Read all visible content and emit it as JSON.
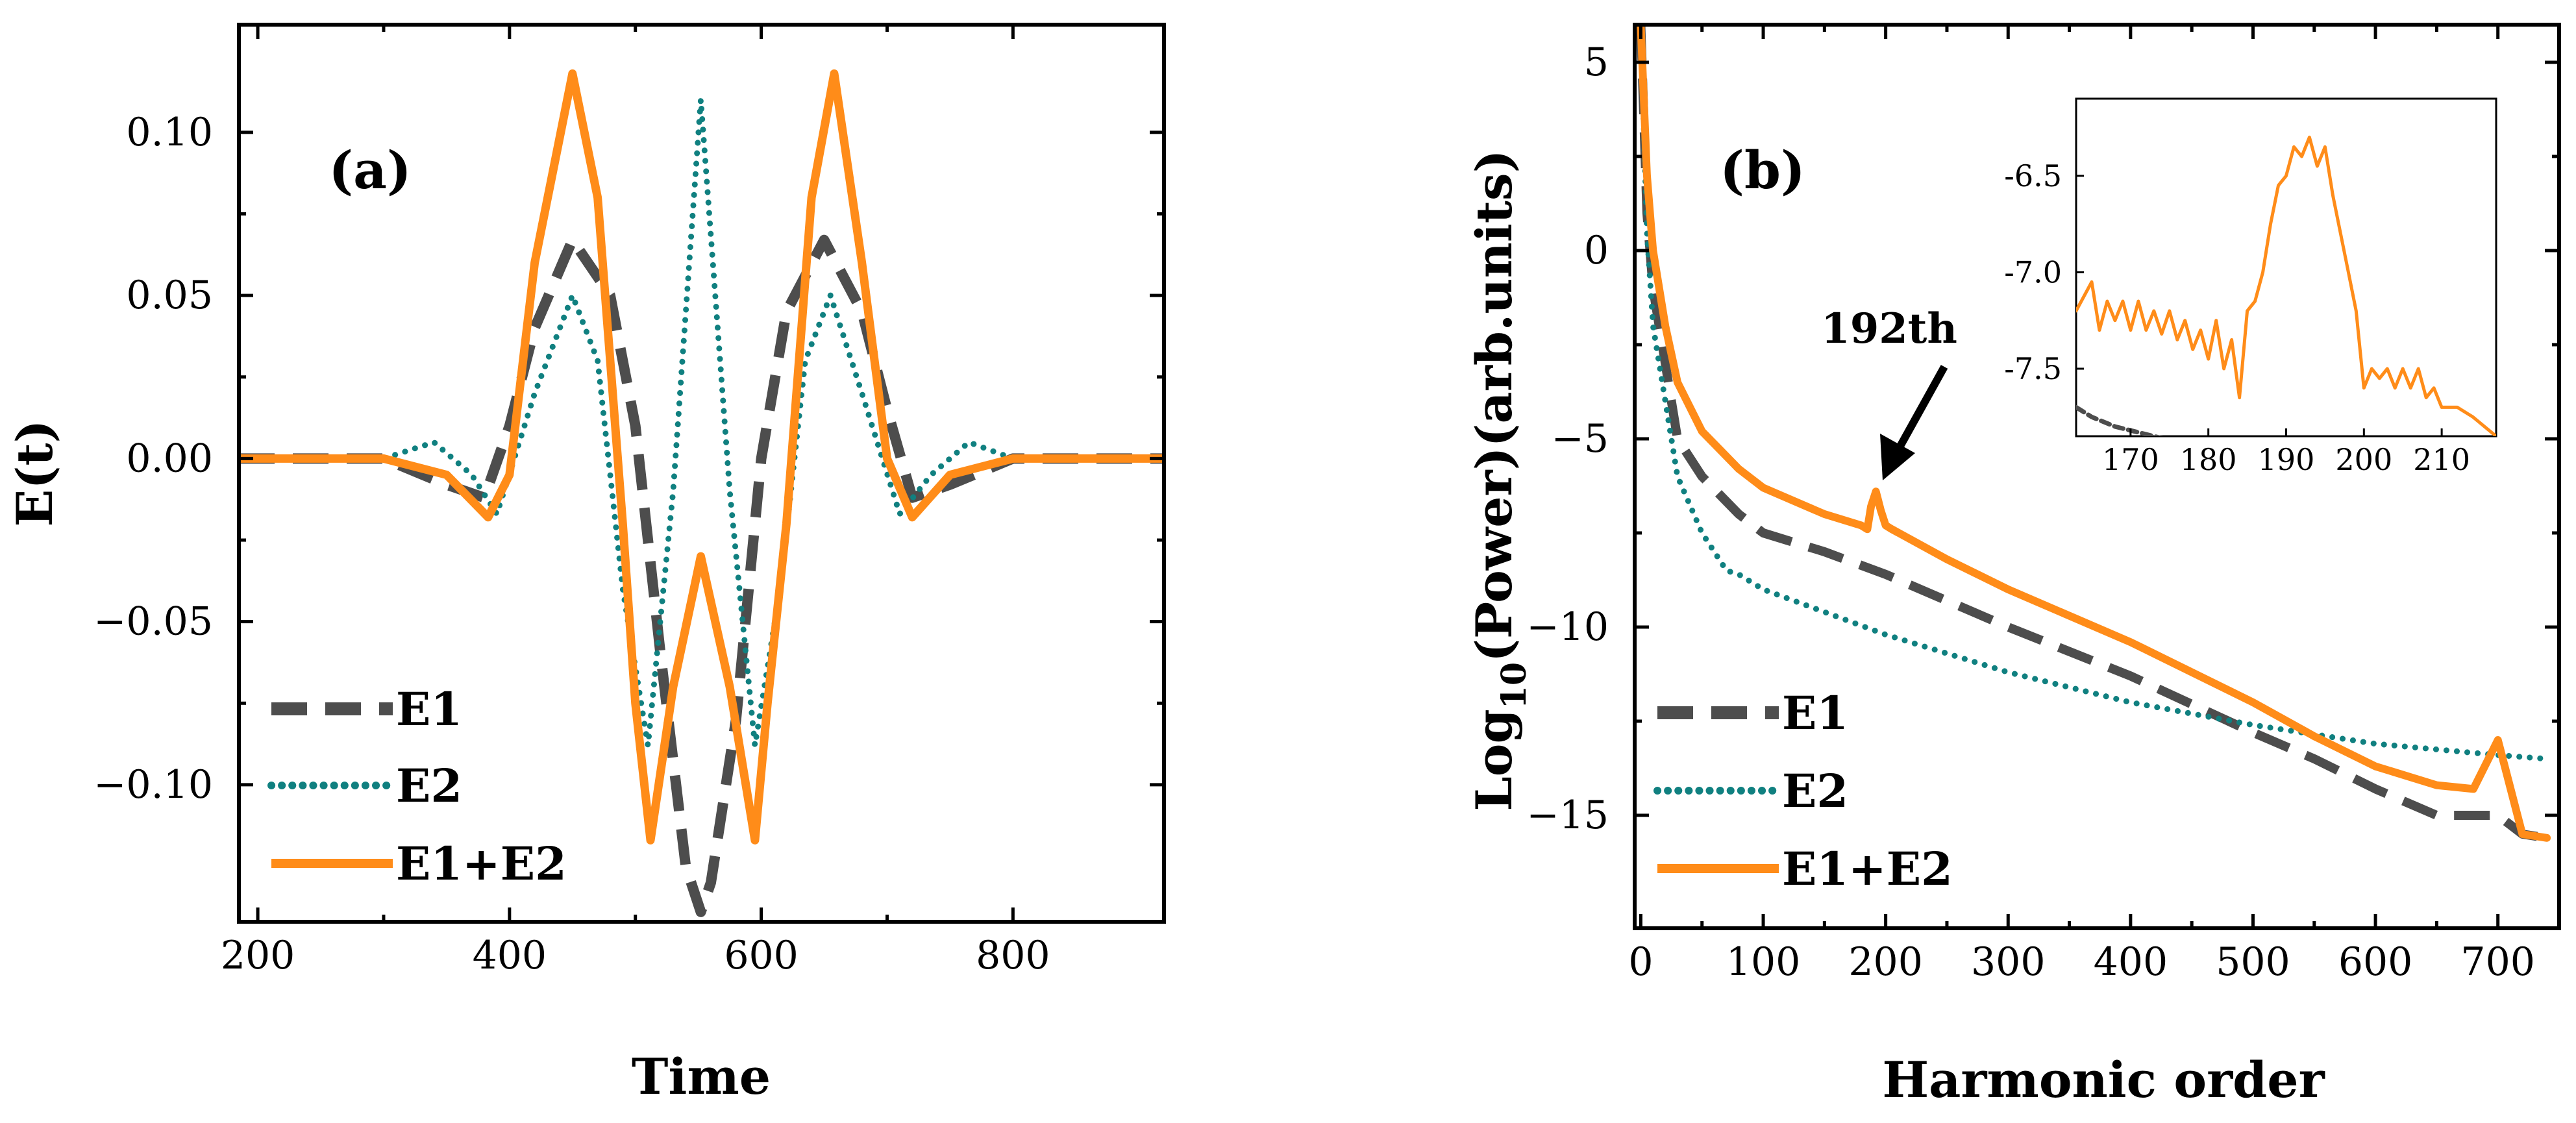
{
  "colors": {
    "E1": "#4d4d4d",
    "E2": "#108080",
    "E1E2": "#ff8c19"
  },
  "chart_data": [
    {
      "type": "line",
      "panel_label": "(a)",
      "xlabel": "Time",
      "ylabel": "E(t)",
      "xlim": [
        185,
        920
      ],
      "ylim": [
        -0.142,
        0.133
      ],
      "xticks": [
        200,
        400,
        600,
        800
      ],
      "yticks": [
        -0.1,
        -0.05,
        0.0,
        0.05,
        0.1
      ],
      "ytick_labels": [
        "−0.10",
        "−0.05",
        "0.00",
        "0.05",
        "0.10"
      ],
      "legend": {
        "placement": "bottom-left",
        "entries": [
          "E1",
          "E2",
          "E1+E2"
        ]
      },
      "series": [
        {
          "name": "E1",
          "style": "dashed",
          "x": [
            185,
            250,
            300,
            350,
            380,
            400,
            420,
            450,
            480,
            500,
            520,
            540,
            552,
            560,
            580,
            600,
            620,
            650,
            680,
            700,
            720,
            750,
            800,
            850,
            920
          ],
          "y": [
            0,
            0,
            0,
            -0.008,
            -0.012,
            0.01,
            0.04,
            0.067,
            0.05,
            0.01,
            -0.06,
            -0.125,
            -0.139,
            -0.13,
            -0.08,
            0.0,
            0.045,
            0.067,
            0.045,
            0.015,
            -0.012,
            -0.008,
            0,
            0,
            0
          ]
        },
        {
          "name": "E2",
          "style": "dotted",
          "x": [
            185,
            300,
            340,
            370,
            390,
            420,
            450,
            470,
            490,
            510,
            530,
            552,
            575,
            595,
            615,
            635,
            655,
            680,
            710,
            735,
            765,
            800,
            920
          ],
          "y": [
            0,
            0,
            0.005,
            -0.005,
            -0.017,
            0.02,
            0.05,
            0.03,
            -0.04,
            -0.088,
            -0.01,
            0.11,
            -0.01,
            -0.088,
            -0.04,
            0.03,
            0.05,
            0.02,
            -0.017,
            -0.005,
            0.005,
            0,
            0
          ]
        },
        {
          "name": "E1+E2",
          "style": "solid",
          "x": [
            185,
            300,
            350,
            383,
            400,
            420,
            450,
            470,
            490,
            500,
            512,
            530,
            552,
            575,
            595,
            605,
            620,
            640,
            658,
            680,
            700,
            720,
            750,
            800,
            920
          ],
          "y": [
            0,
            0,
            -0.005,
            -0.018,
            -0.005,
            0.06,
            0.118,
            0.08,
            -0.02,
            -0.075,
            -0.117,
            -0.07,
            -0.03,
            -0.07,
            -0.117,
            -0.075,
            -0.02,
            0.08,
            0.118,
            0.06,
            0.0,
            -0.018,
            -0.005,
            0,
            0
          ]
        }
      ]
    },
    {
      "type": "line",
      "panel_label": "(b)",
      "xlabel": "Harmonic order",
      "ylabel": "Log10(Power)(arb.units)",
      "ylabel_main": "Log",
      "ylabel_sub": "10",
      "ylabel_rest": "(Power)(arb.units)",
      "xlim": [
        -5,
        750
      ],
      "ylim": [
        -18,
        6
      ],
      "xticks": [
        0,
        100,
        200,
        300,
        400,
        500,
        600,
        700
      ],
      "yticks": [
        5,
        0,
        -5,
        -10,
        -15
      ],
      "ytick_labels": [
        "5",
        "0",
        "−5",
        "−10",
        "−15"
      ],
      "annotation": {
        "text": "192th",
        "x": 192,
        "y": -6.5
      },
      "legend": {
        "placement": "bottom-left",
        "entries": [
          "E1",
          "E2",
          "E1+E2"
        ]
      },
      "series": [
        {
          "name": "E1",
          "style": "dashed",
          "x": [
            0,
            5,
            10,
            20,
            30,
            50,
            80,
            100,
            150,
            200,
            250,
            300,
            400,
            500,
            550,
            600,
            650,
            700,
            720,
            740
          ],
          "y": [
            6,
            1,
            -1,
            -3,
            -5,
            -6,
            -7,
            -7.5,
            -8,
            -8.6,
            -9.3,
            -10,
            -11.3,
            -12.8,
            -13.5,
            -14.3,
            -15,
            -15,
            -15.5,
            -15.6
          ]
        },
        {
          "name": "E2",
          "style": "dotted",
          "x": [
            0,
            5,
            10,
            20,
            30,
            50,
            60,
            70,
            80,
            100,
            150,
            200,
            300,
            400,
            500,
            600,
            700,
            740
          ],
          "y": [
            6,
            0.5,
            -2,
            -4,
            -6,
            -7.5,
            -8,
            -8.5,
            -8.6,
            -9,
            -9.6,
            -10.2,
            -11.2,
            -12,
            -12.6,
            -13.1,
            -13.4,
            -13.5
          ]
        },
        {
          "name": "E1+E2",
          "style": "solid",
          "x": [
            0,
            5,
            10,
            20,
            30,
            50,
            80,
            100,
            150,
            180,
            185,
            188,
            192,
            196,
            200,
            205,
            250,
            300,
            400,
            500,
            550,
            600,
            650,
            680,
            700,
            720,
            740
          ],
          "y": [
            6,
            2,
            0,
            -2,
            -3.5,
            -4.8,
            -5.8,
            -6.3,
            -7,
            -7.3,
            -7.4,
            -6.8,
            -6.4,
            -6.9,
            -7.3,
            -7.4,
            -8.2,
            -9,
            -10.4,
            -12,
            -12.9,
            -13.7,
            -14.2,
            -14.3,
            -13,
            -15.5,
            -15.6
          ]
        }
      ],
      "inset": {
        "type": "line",
        "xlim": [
          163,
          217
        ],
        "ylim": [
          -7.85,
          -6.1
        ],
        "xticks": [
          170,
          180,
          190,
          200,
          210
        ],
        "yticks": [
          -6.5,
          -7.0,
          -7.5
        ],
        "ytick_labels": [
          "-6.5",
          "-7.0",
          "-7.5"
        ],
        "series": [
          {
            "name": "E1+E2",
            "x": [
              163,
              165,
              166,
              167,
              168,
              169,
              170,
              171,
              172,
              173,
              174,
              175,
              176,
              177,
              178,
              179,
              180,
              181,
              182,
              183,
              184,
              185,
              186,
              187,
              188,
              189,
              190,
              191,
              192,
              193,
              194,
              195,
              196,
              197,
              198,
              199,
              200,
              201,
              202,
              203,
              204,
              205,
              206,
              207,
              208,
              209,
              210,
              212,
              214,
              217
            ],
            "y": [
              -7.2,
              -7.05,
              -7.3,
              -7.15,
              -7.25,
              -7.15,
              -7.3,
              -7.15,
              -7.3,
              -7.2,
              -7.32,
              -7.2,
              -7.35,
              -7.25,
              -7.4,
              -7.3,
              -7.45,
              -7.25,
              -7.5,
              -7.35,
              -7.65,
              -7.2,
              -7.15,
              -7.0,
              -6.75,
              -6.55,
              -6.5,
              -6.35,
              -6.4,
              -6.3,
              -6.45,
              -6.35,
              -6.6,
              -6.8,
              -7.0,
              -7.2,
              -7.6,
              -7.5,
              -7.55,
              -7.5,
              -7.6,
              -7.5,
              -7.6,
              -7.5,
              -7.65,
              -7.6,
              -7.7,
              -7.7,
              -7.75,
              -7.85
            ]
          },
          {
            "name": "E1",
            "x": [
              163,
              165,
              168,
              171,
              174,
              177,
              180
            ],
            "y": [
              -7.7,
              -7.75,
              -7.8,
              -7.83,
              -7.86,
              -7.9,
              -7.95
            ]
          }
        ]
      }
    }
  ]
}
